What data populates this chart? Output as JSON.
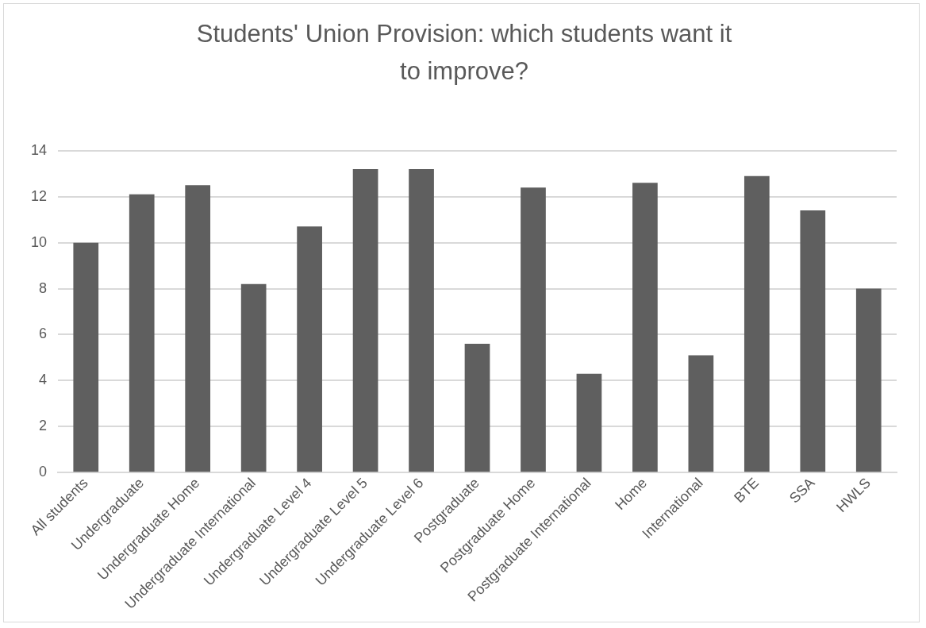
{
  "chart_data": {
    "type": "bar",
    "title": "Students' Union Provision: which students want it to improve?",
    "categories": [
      "All students",
      "Undergraduate",
      "Undergraduate Home",
      "Undergraduate International",
      "Undergraduate Level 4",
      "Undergraduate Level 5",
      "Undergraduate Level 6",
      "Postgraduate",
      "Postgraduate Home",
      "Postgraduate International",
      "Home",
      "International",
      "BTE",
      "SSA",
      "HWLS"
    ],
    "values": [
      10.0,
      12.1,
      12.5,
      8.2,
      10.7,
      13.2,
      13.2,
      5.6,
      12.4,
      4.3,
      12.6,
      5.1,
      12.9,
      11.4,
      8.0
    ],
    "color": "#5f5f5f",
    "ylim": [
      0,
      14
    ],
    "yticks": [
      0,
      2,
      4,
      6,
      8,
      10,
      12,
      14
    ],
    "grid": "y",
    "legend": false
  }
}
